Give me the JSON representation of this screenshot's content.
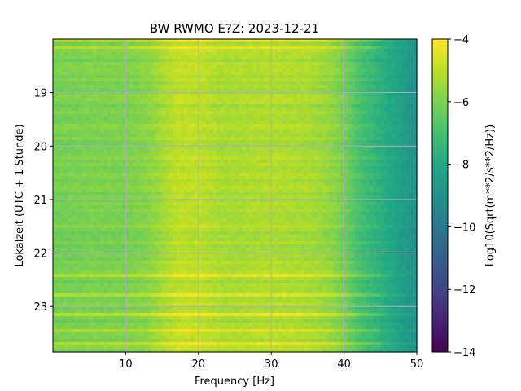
{
  "chart_data": {
    "type": "heatmap",
    "title": "BW RWMO  E?Z: 2023-12-21",
    "xlabel": "Frequency [Hz]",
    "ylabel": "Lokalzeit (UTC + 1 Stunde)",
    "colorbar_label": "Log10(Sqrt(m**2/s**2/Hz))",
    "colormap": "viridis",
    "xlim": [
      0,
      50
    ],
    "ylim": [
      18.0,
      23.85
    ],
    "y_inverted": true,
    "clim": [
      -14,
      -4
    ],
    "grid": true,
    "x_ticks": [
      10,
      20,
      30,
      40,
      50
    ],
    "x_tick_labels": [
      "10",
      "20",
      "30",
      "40",
      "50"
    ],
    "y_ticks": [
      19,
      20,
      21,
      22,
      23
    ],
    "y_tick_labels": [
      "19",
      "20",
      "21",
      "22",
      "23"
    ],
    "colorbar_ticks": [
      -4,
      -6,
      -8,
      -10,
      -12,
      -14
    ],
    "colorbar_tick_labels": [
      "−4",
      "−6",
      "−8",
      "−10",
      "−12",
      "−14"
    ],
    "frequency_profile": {
      "freq": [
        0,
        5,
        10,
        13,
        15,
        17,
        20,
        23,
        25,
        30,
        35,
        38,
        40,
        42,
        44,
        46,
        48,
        50
      ],
      "log_amplitude": [
        -6.1,
        -6.0,
        -6.0,
        -5.8,
        -5.4,
        -5.0,
        -5.0,
        -5.3,
        -5.3,
        -5.2,
        -5.3,
        -5.6,
        -6.1,
        -6.9,
        -7.4,
        -7.9,
        -8.4,
        -9.0
      ]
    },
    "bright_rows_local_time": [
      18.05,
      18.15,
      22.4,
      22.8,
      23.15,
      23.45,
      23.7
    ],
    "colors": {
      "viridis_low": "#440154",
      "viridis_mid": "#21918c",
      "viridis_high": "#fde725",
      "grid": "#b0b0b0"
    }
  }
}
